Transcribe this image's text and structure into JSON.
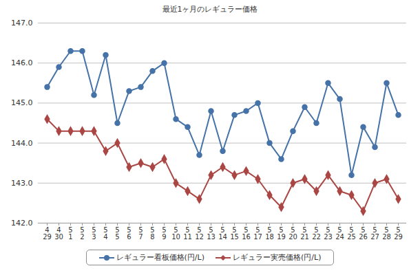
{
  "chart_data": {
    "type": "line",
    "title": "最近1ヶ月のレギュラー価格",
    "categories": [
      "4\n29",
      "4\n30",
      "5\n1",
      "5\n2",
      "5\n3",
      "5\n4",
      "5\n5",
      "5\n6",
      "5\n7",
      "5\n8",
      "5\n9",
      "5\n10",
      "5\n11",
      "5\n12",
      "5\n13",
      "5\n14",
      "5\n15",
      "5\n16",
      "5\n17",
      "5\n18",
      "5\n19",
      "5\n20",
      "5\n21",
      "5\n22",
      "5\n23",
      "5\n24",
      "5\n25",
      "5\n26",
      "5\n27",
      "5\n28",
      "5\n29"
    ],
    "series": [
      {
        "name": "レギュラー看板価格(円/L)",
        "color": "#4572A7",
        "marker": "circle",
        "values": [
          145.4,
          145.9,
          146.3,
          146.3,
          145.2,
          146.2,
          144.5,
          145.3,
          145.4,
          145.8,
          146.0,
          144.6,
          144.4,
          143.7,
          144.8,
          143.8,
          144.7,
          144.8,
          145.0,
          144.0,
          143.6,
          144.3,
          144.9,
          144.5,
          145.5,
          145.1,
          143.2,
          144.4,
          143.9,
          145.5,
          144.7
        ]
      },
      {
        "name": "レギュラー実売価格(円/L)",
        "color": "#AA4643",
        "marker": "diamond",
        "values": [
          144.6,
          144.3,
          144.3,
          144.3,
          144.3,
          143.8,
          144.0,
          143.4,
          143.5,
          143.4,
          143.6,
          143.0,
          142.8,
          142.6,
          143.2,
          143.4,
          143.2,
          143.3,
          143.1,
          142.7,
          142.4,
          143.0,
          143.1,
          142.8,
          143.2,
          142.8,
          142.7,
          142.3,
          143.0,
          143.1,
          142.6
        ]
      }
    ],
    "ylim": [
      142,
      147
    ],
    "yticks": [
      142,
      143,
      144,
      145,
      146,
      147
    ],
    "grid": true,
    "legend": "bottom"
  }
}
